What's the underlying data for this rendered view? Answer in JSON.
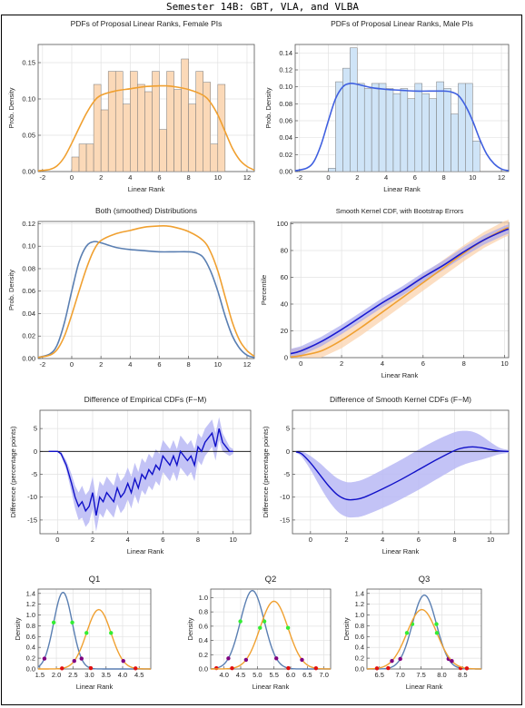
{
  "title": "Semester 14B: GBT, VLA, and VLBA",
  "colors": {
    "female": "#f0a030",
    "female_fill": "#fbd9b8",
    "male": "#4060e0",
    "male_fill": "#cfe4f7",
    "smooth_male": "#5a7fb2",
    "diff": "#1010c8",
    "band": "#b8b8f4"
  },
  "chart_data": [
    {
      "id": "female_hist",
      "type": "bar",
      "title": "PDFs of Proposal Linear Ranks, Female PIs",
      "xlabel": "Linear Rank",
      "ylabel": "Prob. Density",
      "xlim": [
        -2.3,
        12.5
      ],
      "ylim": [
        0,
        0.175
      ],
      "xticks": [
        -2,
        0,
        2,
        4,
        6,
        8,
        10,
        12
      ],
      "yticks": [
        0.0,
        0.05,
        0.1,
        0.15
      ],
      "ytick_labels": [
        "0.00",
        "0.05",
        "0.10",
        "0.15"
      ],
      "bin_edges": [
        0,
        0.5,
        1,
        1.5,
        2,
        2.5,
        3,
        3.5,
        4,
        4.5,
        5,
        5.5,
        6,
        6.5,
        7,
        7.5,
        8,
        8.5,
        9,
        9.5,
        10,
        10.5
      ],
      "values": [
        0.02,
        0.038,
        0.038,
        0.12,
        0.085,
        0.138,
        0.138,
        0.093,
        0.138,
        0.12,
        0.11,
        0.138,
        0.058,
        0.138,
        0.113,
        0.155,
        0.093,
        0.138,
        0.123,
        0.038,
        0.12
      ],
      "curve": {
        "x": [
          -2.3,
          -1.5,
          -1,
          -0.5,
          0,
          0.5,
          1,
          1.5,
          2,
          3,
          4,
          5,
          6,
          6.5,
          7,
          8,
          9,
          9.5,
          10,
          10.5,
          11,
          11.5,
          12,
          12.5
        ],
        "y": [
          0.001,
          0.003,
          0.008,
          0.02,
          0.039,
          0.06,
          0.08,
          0.096,
          0.105,
          0.111,
          0.114,
          0.117,
          0.118,
          0.118,
          0.117,
          0.113,
          0.105,
          0.095,
          0.078,
          0.055,
          0.032,
          0.016,
          0.007,
          0.002
        ]
      }
    },
    {
      "id": "male_hist",
      "type": "bar",
      "title": "PDFs of Proposal Linear Ranks, Male PIs",
      "xlabel": "Linear Rank",
      "ylabel": "Prob. Density",
      "xlim": [
        -2.3,
        12.5
      ],
      "ylim": [
        0,
        0.15
      ],
      "xticks": [
        -2,
        0,
        2,
        4,
        6,
        8,
        10,
        12
      ],
      "yticks": [
        0.0,
        0.02,
        0.04,
        0.06,
        0.08,
        0.1,
        0.12,
        0.14
      ],
      "ytick_labels": [
        "0.00",
        "0.02",
        "0.04",
        "0.06",
        "0.08",
        "0.10",
        "0.12",
        "0.14"
      ],
      "bin_edges": [
        0,
        0.5,
        1,
        1.5,
        2,
        2.5,
        3,
        3.5,
        4,
        4.5,
        5,
        5.5,
        6,
        6.5,
        7,
        7.5,
        8,
        8.5,
        9,
        9.5,
        10,
        10.5
      ],
      "values": [
        0.004,
        0.106,
        0.122,
        0.146,
        0.104,
        0.098,
        0.104,
        0.104,
        0.098,
        0.092,
        0.098,
        0.086,
        0.104,
        0.092,
        0.086,
        0.106,
        0.098,
        0.068,
        0.104,
        0.104,
        0.036
      ],
      "curve": {
        "x": [
          -2.3,
          -1.5,
          -1,
          -0.5,
          0,
          0.5,
          1,
          1.5,
          2,
          3,
          4,
          5,
          6,
          7,
          8,
          8.5,
          9,
          9.5,
          10,
          10.5,
          11,
          11.5,
          12,
          12.5
        ],
        "y": [
          0.001,
          0.004,
          0.012,
          0.032,
          0.06,
          0.086,
          0.1,
          0.104,
          0.103,
          0.099,
          0.097,
          0.096,
          0.095,
          0.095,
          0.095,
          0.094,
          0.09,
          0.078,
          0.06,
          0.038,
          0.02,
          0.009,
          0.003,
          0.001
        ]
      }
    },
    {
      "id": "both_smoothed",
      "type": "line",
      "title": "Both (smoothed) Distributions",
      "xlabel": "",
      "ylabel": "Prob. Density",
      "xlim": [
        -2.3,
        12.5
      ],
      "ylim": [
        0,
        0.122
      ],
      "xticks": [
        -2,
        0,
        2,
        4,
        6,
        8,
        10,
        12
      ],
      "yticks": [
        0.0,
        0.02,
        0.04,
        0.06,
        0.08,
        0.1,
        0.12
      ],
      "ytick_labels": [
        "0.00",
        "0.02",
        "0.04",
        "0.06",
        "0.08",
        "0.10",
        "0.12"
      ],
      "series_ref": [
        "male_hist",
        "female_hist"
      ]
    },
    {
      "id": "kernel_cdf",
      "type": "line",
      "title": "Smooth Kernel CDF, with Bootstrap Errors",
      "xlabel": "Linear Rank",
      "ylabel": "Percentile",
      "xlim": [
        -0.5,
        10.2
      ],
      "ylim": [
        0,
        101
      ],
      "xticks": [
        0,
        2,
        4,
        6,
        8,
        10
      ],
      "yticks": [
        0,
        20,
        40,
        60,
        80,
        100
      ],
      "ytick_labels": [
        "0",
        "20",
        "40",
        "60",
        "80",
        "100"
      ],
      "series": [
        {
          "x": [
            -0.5,
            0,
            1,
            2,
            3,
            4,
            5,
            6,
            7,
            8,
            9,
            10,
            10.2
          ],
          "y": [
            3,
            5,
            12,
            21,
            31,
            41,
            50,
            60,
            69,
            79,
            88,
            95,
            96
          ],
          "band": 3.5
        },
        {
          "x": [
            -0.5,
            0,
            1,
            2,
            3,
            4,
            5,
            6,
            7,
            8,
            9,
            10,
            10.2
          ],
          "y": [
            0.5,
            1.5,
            5,
            13,
            23,
            34,
            45,
            56,
            67,
            78,
            88,
            96,
            97
          ],
          "band": 6
        }
      ]
    },
    {
      "id": "diff_empirical",
      "type": "line",
      "title": "Difference of Empirical CDFs (F−M)",
      "xlabel": "Linear Rank",
      "ylabel": "Difference (percentage points)",
      "xlim": [
        -1,
        11
      ],
      "ylim": [
        -18,
        9
      ],
      "xticks": [
        0,
        2,
        4,
        6,
        8,
        10
      ],
      "yticks": [
        -15,
        -10,
        -5,
        0,
        5
      ],
      "ytick_labels": [
        "-15",
        "-10",
        "-5",
        "0",
        "5"
      ],
      "series": [
        {
          "x": [
            -0.5,
            0,
            0.2,
            0.5,
            0.8,
            1,
            1.2,
            1.4,
            1.6,
            1.8,
            2,
            2.2,
            2.4,
            2.6,
            2.8,
            3,
            3.2,
            3.4,
            3.6,
            3.8,
            4,
            4.2,
            4.4,
            4.6,
            4.8,
            5,
            5.2,
            5.4,
            5.6,
            5.8,
            6,
            6.2,
            6.4,
            6.6,
            6.8,
            7,
            7.2,
            7.4,
            7.6,
            7.8,
            8,
            8.2,
            8.4,
            8.6,
            8.8,
            9,
            9.2,
            9.4,
            9.6,
            9.8,
            10
          ],
          "y": [
            0,
            0,
            -0.5,
            -3,
            -7,
            -10,
            -12,
            -11,
            -13,
            -12,
            -9,
            -14,
            -10,
            -11,
            -9,
            -10,
            -11,
            -8,
            -10,
            -9,
            -7,
            -9,
            -6,
            -8,
            -5,
            -6,
            -4,
            -5,
            -3,
            -4,
            -1,
            -2,
            -3,
            -1,
            -3,
            0,
            -1,
            -2,
            -1,
            -3,
            1,
            0,
            2,
            3,
            4,
            1,
            5,
            2,
            1,
            0,
            0
          ],
          "band": [
            0,
            0,
            0.5,
            1,
            2,
            2.5,
            3,
            3.5,
            3.5,
            3.5,
            3.5,
            3.5,
            3.5,
            3.5,
            3.5,
            3.5,
            3.5,
            3.5,
            3.5,
            3.5,
            3.5,
            3.5,
            3.5,
            3.5,
            3.5,
            3.5,
            3.5,
            3.5,
            3.5,
            3.5,
            3.5,
            3.5,
            3.5,
            3.5,
            3.5,
            3.5,
            3.5,
            3.5,
            3.5,
            3.5,
            3,
            3,
            3,
            3,
            3,
            3,
            2.5,
            2,
            1.5,
            1,
            0.5
          ]
        }
      ]
    },
    {
      "id": "diff_smooth",
      "type": "line",
      "title": "Difference of Smooth Kernel CDFs (F−M)",
      "xlabel": "Linear Rank",
      "ylabel": "Difference (percentage points)",
      "xlim": [
        -1,
        11
      ],
      "ylim": [
        -18,
        9
      ],
      "xticks": [
        0,
        2,
        4,
        6,
        8,
        10
      ],
      "yticks": [
        -15,
        -10,
        -5,
        0,
        5
      ],
      "ytick_labels": [
        "-15",
        "-10",
        "-5",
        "0",
        "5"
      ],
      "series": [
        {
          "x": [
            -0.8,
            -0.5,
            0,
            0.5,
            1,
            1.5,
            2,
            2.5,
            3,
            4,
            5,
            6,
            7,
            8,
            8.5,
            9,
            9.5,
            10,
            10.5,
            11
          ],
          "y": [
            -0.1,
            -0.5,
            -2.5,
            -5,
            -7.5,
            -9.5,
            -10.5,
            -10.5,
            -10,
            -8.2,
            -6.2,
            -4,
            -1.8,
            0.2,
            0.8,
            1,
            0.8,
            0.4,
            0.1,
            0
          ],
          "band": [
            0.2,
            0.6,
            1.5,
            2.5,
            3.2,
            3.6,
            3.8,
            3.9,
            4,
            4.2,
            4.3,
            4.4,
            4.3,
            4,
            3.7,
            3.3,
            2.6,
            1.6,
            0.7,
            0.3
          ]
        }
      ]
    },
    {
      "id": "q1",
      "type": "line",
      "title": "Q1",
      "xlabel": "Linear Rank",
      "ylabel": "Density",
      "xlim": [
        1.45,
        4.85
      ],
      "ylim": [
        0,
        1.48
      ],
      "xticks": [
        1.5,
        2.0,
        2.5,
        3.0,
        3.5,
        4.0,
        4.5
      ],
      "xtick_labels": [
        "1.5",
        "2.0",
        "2.5",
        "3.0",
        "3.5",
        "4.0",
        "4.5"
      ],
      "yticks": [
        0,
        0.2,
        0.4,
        0.6,
        0.8,
        1.0,
        1.2,
        1.4
      ],
      "ytick_labels": [
        "0.0",
        "0.2",
        "0.4",
        "0.6",
        "0.8",
        "1.0",
        "1.2",
        "1.4"
      ],
      "series": [
        {
          "name": "",
          "mu": 2.2,
          "sigma": 0.28,
          "peak": 1.42,
          "color": "male"
        },
        {
          "name": "",
          "mu": 3.28,
          "sigma": 0.37,
          "peak": 1.1,
          "color": "female"
        }
      ],
      "markers_sigma_green": 1,
      "markers_sigma_purple": 2,
      "markers_sigma_red": 3
    },
    {
      "id": "q2",
      "type": "line",
      "title": "Q2",
      "xlabel": "Linear Rank",
      "ylabel": "Density",
      "xlim": [
        3.6,
        7.2
      ],
      "ylim": [
        0,
        1.12
      ],
      "xticks": [
        4.0,
        4.5,
        5.0,
        5.5,
        6.0,
        6.5,
        7.0
      ],
      "xtick_labels": [
        "4.0",
        "4.5",
        "5.0",
        "5.5",
        "6.0",
        "6.5",
        "7.0"
      ],
      "yticks": [
        0,
        0.2,
        0.4,
        0.6,
        0.8,
        1.0
      ],
      "ytick_labels": [
        "0.0",
        "0.2",
        "0.4",
        "0.6",
        "0.8",
        "1.0"
      ],
      "series": [
        {
          "name": "",
          "mu": 4.85,
          "sigma": 0.36,
          "peak": 1.1,
          "color": "male"
        },
        {
          "name": "",
          "mu": 5.5,
          "sigma": 0.42,
          "peak": 0.95,
          "color": "female"
        }
      ],
      "markers_sigma_green": 1,
      "markers_sigma_purple": 2,
      "markers_sigma_red": 3
    },
    {
      "id": "q3",
      "type": "line",
      "title": "Q3",
      "xlabel": "Linear Rank",
      "ylabel": "Density",
      "xlim": [
        6.2,
        8.95
      ],
      "ylim": [
        0,
        1.48
      ],
      "xticks": [
        6.5,
        7.0,
        7.5,
        8.0,
        8.5
      ],
      "xtick_labels": [
        "6.5",
        "7.0",
        "7.5",
        "8.0",
        "8.5"
      ],
      "yticks": [
        0,
        0.2,
        0.4,
        0.6,
        0.8,
        1.0,
        1.2,
        1.4
      ],
      "ytick_labels": [
        "0.0",
        "0.2",
        "0.4",
        "0.6",
        "0.8",
        "1.0",
        "1.2",
        "1.4"
      ],
      "series": [
        {
          "name": "",
          "mu": 7.58,
          "sigma": 0.29,
          "peak": 1.37,
          "color": "male"
        },
        {
          "name": "",
          "mu": 7.52,
          "sigma": 0.36,
          "peak": 1.1,
          "color": "female"
        }
      ],
      "markers_sigma_green": 1,
      "markers_sigma_purple": 2,
      "markers_sigma_red": 3
    }
  ]
}
